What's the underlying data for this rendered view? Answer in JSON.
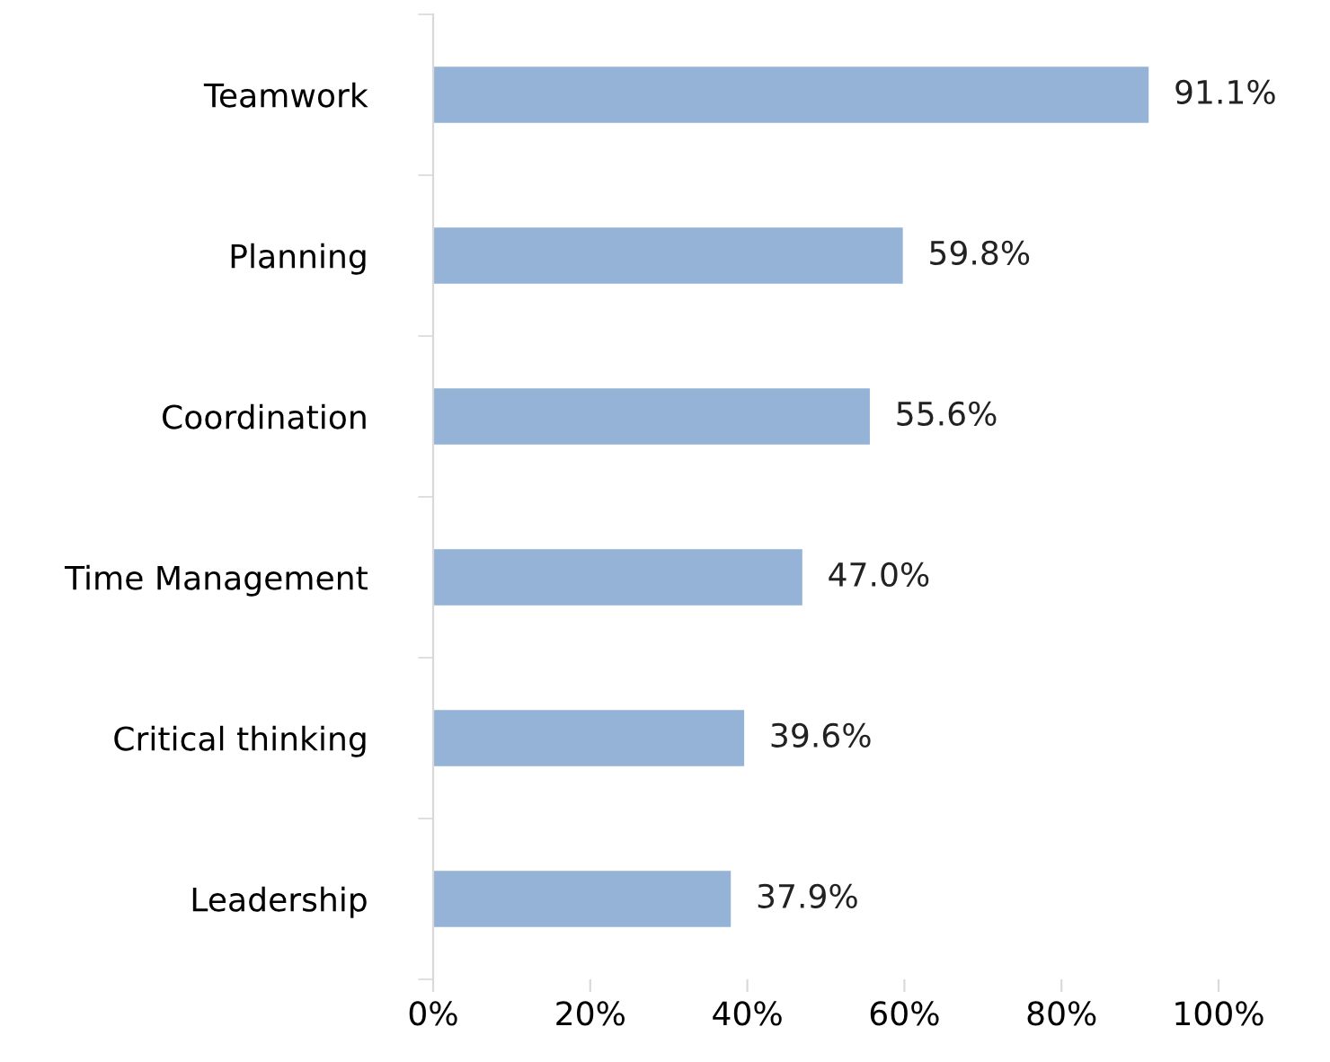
{
  "chart_data": {
    "type": "bar",
    "orientation": "horizontal",
    "categories": [
      "Teamwork",
      "Planning",
      "Coordination",
      "Time Management",
      "Critical thinking",
      "Leadership"
    ],
    "values": [
      91.1,
      59.8,
      55.6,
      47.0,
      39.6,
      37.9
    ],
    "value_labels": [
      "91.1%",
      "59.8%",
      "55.6%",
      "47.0%",
      "39.6%",
      "37.9%"
    ],
    "color": "#95b3d7",
    "xlim": [
      0,
      100
    ],
    "xticks": [
      {
        "value": 0,
        "label": "0%"
      },
      {
        "value": 20,
        "label": "20%"
      },
      {
        "value": 40,
        "label": "40%"
      },
      {
        "value": 60,
        "label": "60%"
      },
      {
        "value": 80,
        "label": "80%"
      },
      {
        "value": 100,
        "label": "100%"
      }
    ],
    "grid": false,
    "legend": false
  }
}
